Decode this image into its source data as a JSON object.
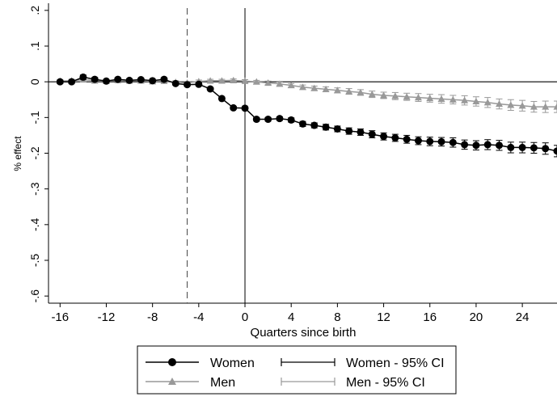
{
  "chart_data": {
    "type": "line",
    "title": "",
    "xlabel": "Quarters since birth",
    "ylabel": "% effect",
    "xlim": [
      -17,
      27
    ],
    "ylim": [
      -0.62,
      0.22
    ],
    "xticks": [
      -16,
      -12,
      -8,
      -4,
      0,
      4,
      8,
      12,
      16,
      20,
      24
    ],
    "xtick_labels": [
      "-16",
      "-12",
      "-8",
      "-4",
      "0",
      "4",
      "8",
      "12",
      "16",
      "20",
      "24"
    ],
    "yticks": [
      0.2,
      0.1,
      0,
      -0.1,
      -0.2,
      -0.3,
      -0.4,
      -0.5,
      -0.6
    ],
    "ytick_labels": [
      ".2",
      ".1",
      "0",
      "-.1",
      "-.2",
      "-.3",
      "-.4",
      "-.5",
      "-.6"
    ],
    "grid": false,
    "reference_lines": {
      "horizontal_y": 0,
      "vertical_solid_x": 0,
      "vertical_dashed_x": -5
    },
    "legend_position": "bottom",
    "x": [
      -16,
      -15,
      -14,
      -13,
      -12,
      -11,
      -10,
      -9,
      -8,
      -7,
      -6,
      -5,
      -4,
      -3,
      -2,
      -1,
      0,
      1,
      2,
      3,
      4,
      5,
      6,
      7,
      8,
      9,
      10,
      11,
      12,
      13,
      14,
      15,
      16,
      17,
      18,
      19,
      20,
      21,
      22,
      23,
      24,
      25,
      26,
      27
    ],
    "series": [
      {
        "name": "Women",
        "color": "#000000",
        "marker": "circle",
        "values": [
          0.0,
          0.0,
          0.013,
          0.007,
          0.002,
          0.007,
          0.004,
          0.006,
          0.003,
          0.007,
          -0.005,
          -0.008,
          -0.007,
          -0.02,
          -0.047,
          -0.073,
          -0.074,
          -0.105,
          -0.105,
          -0.103,
          -0.107,
          -0.118,
          -0.122,
          -0.127,
          -0.132,
          -0.138,
          -0.141,
          -0.147,
          -0.153,
          -0.157,
          -0.161,
          -0.165,
          -0.167,
          -0.168,
          -0.17,
          -0.176,
          -0.178,
          -0.176,
          -0.178,
          -0.184,
          -0.184,
          -0.185,
          -0.187,
          -0.194
        ],
        "ci_halfwidth": [
          0.004,
          0.004,
          0.006,
          0.005,
          0.004,
          0.004,
          0.004,
          0.004,
          0.004,
          0.004,
          0.004,
          0.004,
          0.004,
          0.004,
          0.004,
          0.004,
          0.004,
          0.005,
          0.005,
          0.005,
          0.006,
          0.007,
          0.007,
          0.008,
          0.008,
          0.009,
          0.009,
          0.01,
          0.01,
          0.01,
          0.011,
          0.011,
          0.012,
          0.012,
          0.013,
          0.013,
          0.013,
          0.014,
          0.014,
          0.015,
          0.015,
          0.015,
          0.016,
          0.016
        ]
      },
      {
        "name": "Men",
        "color": "#999999",
        "marker": "triangle",
        "values": [
          0.002,
          0.003,
          0.006,
          0.003,
          0.002,
          0.004,
          0.003,
          0.003,
          0.001,
          0.002,
          -0.001,
          -0.003,
          0.001,
          0.003,
          0.003,
          0.004,
          0.002,
          0.0,
          -0.003,
          -0.006,
          -0.01,
          -0.015,
          -0.018,
          -0.021,
          -0.024,
          -0.027,
          -0.03,
          -0.035,
          -0.038,
          -0.04,
          -0.042,
          -0.044,
          -0.046,
          -0.048,
          -0.05,
          -0.052,
          -0.055,
          -0.058,
          -0.062,
          -0.065,
          -0.067,
          -0.07,
          -0.07,
          -0.07
        ],
        "ci_halfwidth": [
          0.004,
          0.004,
          0.005,
          0.004,
          0.004,
          0.004,
          0.004,
          0.004,
          0.004,
          0.004,
          0.004,
          0.004,
          0.004,
          0.004,
          0.004,
          0.004,
          0.004,
          0.004,
          0.005,
          0.005,
          0.005,
          0.006,
          0.006,
          0.007,
          0.007,
          0.008,
          0.008,
          0.009,
          0.009,
          0.01,
          0.01,
          0.011,
          0.011,
          0.012,
          0.012,
          0.013,
          0.013,
          0.014,
          0.014,
          0.015,
          0.015,
          0.015,
          0.016,
          0.016
        ]
      }
    ],
    "legend": [
      {
        "label": "Women",
        "kind": "line-marker",
        "marker": "circle",
        "color": "#000000"
      },
      {
        "label": "Women - 95% CI",
        "kind": "ci",
        "color": "#000000"
      },
      {
        "label": "Men",
        "kind": "line-marker",
        "marker": "triangle",
        "color": "#999999"
      },
      {
        "label": "Men - 95% CI",
        "kind": "ci",
        "color": "#999999"
      }
    ]
  }
}
